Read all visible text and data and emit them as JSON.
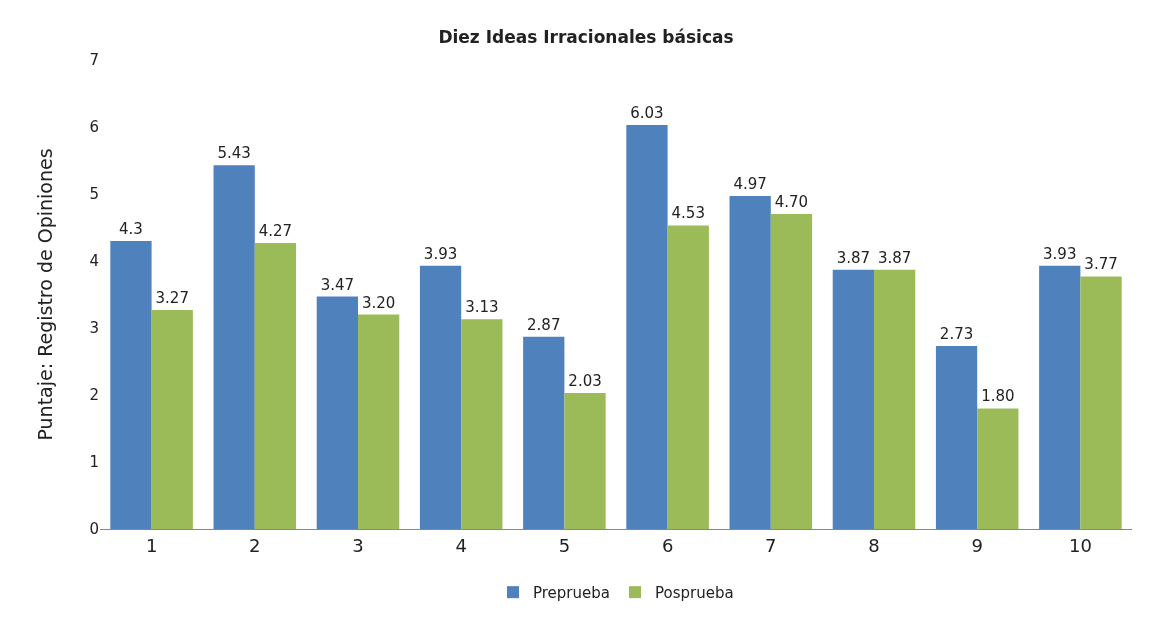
{
  "chart_data": {
    "type": "bar",
    "title": "Diez Ideas Irracionales básicas",
    "ylabel": "Puntaje: Registro de Opiniones",
    "categories": [
      "1",
      "2",
      "3",
      "4",
      "5",
      "6",
      "7",
      "8",
      "9",
      "10"
    ],
    "series": [
      {
        "name": "Preprueba",
        "color": "#4f81bd",
        "values": [
          4.3,
          5.43,
          3.47,
          3.93,
          2.87,
          6.03,
          4.97,
          3.87,
          2.73,
          3.93
        ],
        "value_labels": [
          "4.3",
          "5.43",
          "3.47",
          "3.93",
          "2.87",
          "6.03",
          "4.97",
          "3.87",
          "2.73",
          "3.93"
        ]
      },
      {
        "name": "Posprueba",
        "color": "#9bbb59",
        "values": [
          3.27,
          4.27,
          3.2,
          3.13,
          2.03,
          4.53,
          4.7,
          3.87,
          1.8,
          3.77
        ],
        "value_labels": [
          "3.27",
          "4.27",
          "3.20",
          "3.13",
          "2.03",
          "4.53",
          "4.70",
          "3.87",
          "1.80",
          "3.77"
        ]
      }
    ],
    "ylim": [
      0,
      7
    ],
    "yticks": [
      0,
      1,
      2,
      3,
      4,
      5,
      6,
      7
    ],
    "grid": false,
    "legend": "bottom"
  }
}
